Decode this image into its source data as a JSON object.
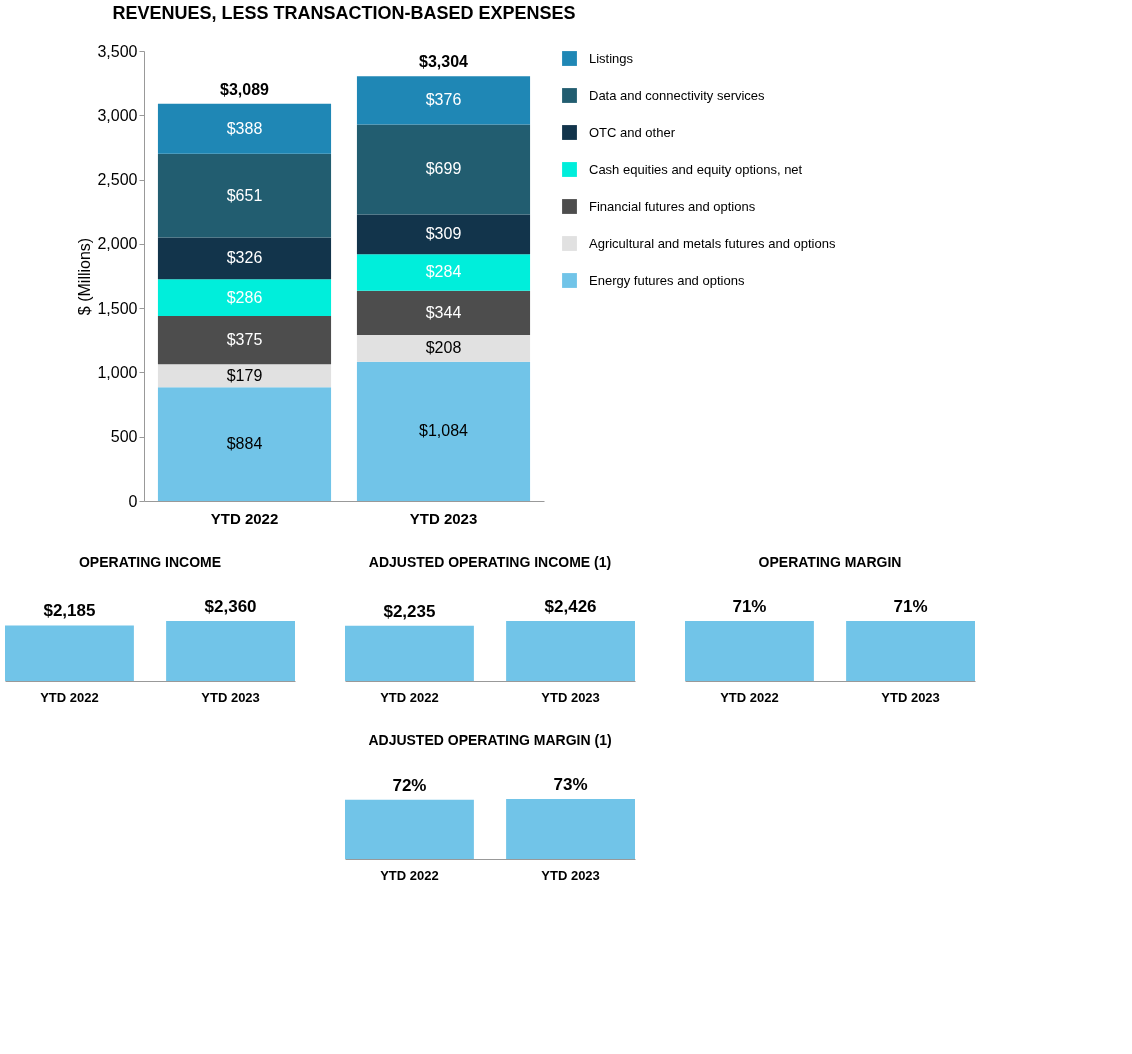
{
  "chart_data": [
    {
      "type": "bar",
      "title": "REVENUES, LESS TRANSACTION-BASED EXPENSES",
      "stacked": true,
      "categories": [
        "YTD 2022",
        "YTD 2023"
      ],
      "ylabel": "$ (Millions)",
      "ylim": [
        0,
        3500
      ],
      "yticks": [
        0,
        500,
        {
          "value": 1000,
          "label": "1,000"
        },
        {
          "value": 1500,
          "label": "1,500"
        },
        {
          "value": 2000,
          "label": "2,000"
        },
        {
          "value": 2500,
          "label": "2,500"
        },
        {
          "value": 3000,
          "label": "3,000"
        },
        {
          "value": 3500,
          "label": "3,500"
        }
      ],
      "grid": false,
      "legend": "right",
      "totals": [
        "$3,089",
        "$3,304"
      ],
      "series": [
        {
          "name": "Energy futures and options",
          "color": "#71c4e8",
          "values": [
            884,
            1084
          ],
          "value_labels": [
            "$884",
            "$1,084"
          ]
        },
        {
          "name": "Agricultural and metals futures and options",
          "color": "#e1e1e1",
          "values": [
            179,
            208
          ],
          "value_labels": [
            "$179",
            "$208"
          ]
        },
        {
          "name": "Financial futures and options",
          "color": "#4d4d4d",
          "values": [
            375,
            344
          ],
          "value_labels": [
            "$375",
            "$344"
          ]
        },
        {
          "name": "Cash equities and equity options, net",
          "color": "#00eedb",
          "values": [
            286,
            284
          ],
          "value_labels": [
            "$286",
            "$284"
          ]
        },
        {
          "name": "OTC and other",
          "color": "#12344b",
          "values": [
            326,
            309
          ],
          "value_labels": [
            "$326",
            "$309"
          ]
        },
        {
          "name": "Data and connectivity services",
          "color": "#225d70",
          "values": [
            651,
            699
          ],
          "value_labels": [
            "$651",
            "$699"
          ]
        },
        {
          "name": "Listings",
          "color": "#1f87b5",
          "values": [
            388,
            376
          ],
          "value_labels": [
            "$388",
            "$376"
          ]
        }
      ]
    },
    {
      "type": "bar",
      "title": "OPERATING INCOME",
      "categories": [
        "YTD 2022",
        "YTD 2023"
      ],
      "values": [
        2185,
        2360
      ],
      "value_labels": [
        "$2,185",
        "$2,360"
      ],
      "color": "#71c4e8"
    },
    {
      "type": "bar",
      "title": "ADJUSTED OPERATING INCOME (1)",
      "categories": [
        "YTD 2022",
        "YTD 2023"
      ],
      "values": [
        2235,
        2426
      ],
      "value_labels": [
        "$2,235",
        "$2,426"
      ],
      "color": "#71c4e8"
    },
    {
      "type": "bar",
      "title": "OPERATING MARGIN",
      "categories": [
        "YTD 2022",
        "YTD 2023"
      ],
      "values": [
        71,
        71
      ],
      "value_labels": [
        "71%",
        "71%"
      ],
      "color": "#71c4e8"
    },
    {
      "type": "bar",
      "title": "ADJUSTED OPERATING MARGIN (1)",
      "categories": [
        "YTD 2022",
        "YTD 2023"
      ],
      "values": [
        72,
        73
      ],
      "value_labels": [
        "72%",
        "73%"
      ],
      "color": "#71c4e8"
    }
  ]
}
